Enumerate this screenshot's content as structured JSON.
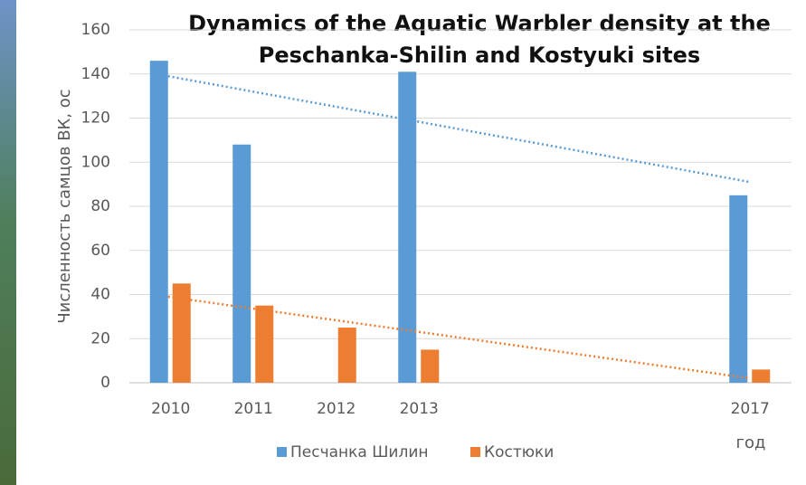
{
  "chart_data": {
    "type": "bar",
    "title": [
      "Dynamics of the Aquatic Warbler density at the",
      "Peschanka-Shilin and Kostyuki sites"
    ],
    "y_label": "Численность самцов ВК, ос",
    "x_label": "год",
    "categories": [
      "2010",
      "2011",
      "2012",
      "2013",
      null,
      null,
      null,
      "2017"
    ],
    "series": [
      {
        "name": "Песчанка Шилин",
        "color": "#5b9bd5",
        "values": [
          146,
          108,
          null,
          141,
          null,
          null,
          null,
          85
        ],
        "trendline": [
          139,
          91
        ]
      },
      {
        "name": "Костюки",
        "color": "#ed7d31",
        "values": [
          45,
          35,
          25,
          15,
          null,
          null,
          null,
          6
        ],
        "trendline": [
          39,
          2
        ]
      }
    ],
    "ylim": [
      0,
      160
    ],
    "yticks": [
      0,
      20,
      40,
      60,
      80,
      100,
      120,
      140,
      160
    ],
    "grid": true
  }
}
